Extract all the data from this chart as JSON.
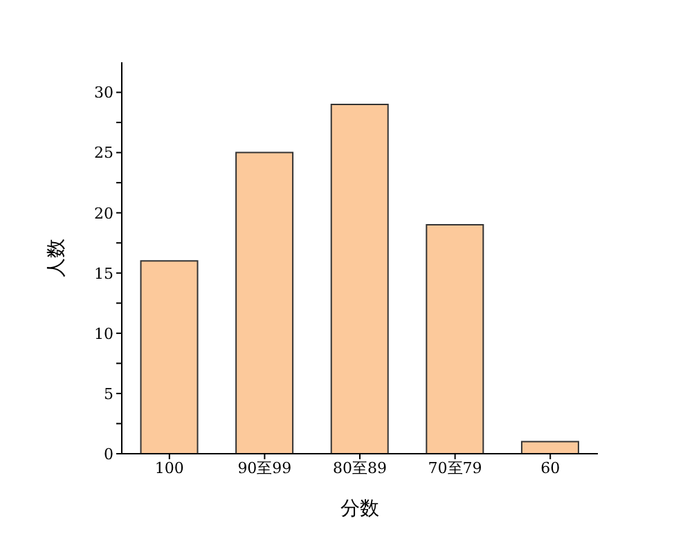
{
  "chart_data": {
    "type": "bar",
    "xlabel": "分数",
    "ylabel": "人数",
    "categories": [
      "100",
      "90至99",
      "80至89",
      "70至79",
      "60"
    ],
    "values": [
      16,
      25,
      29,
      19,
      1
    ],
    "color": "#fcc99b",
    "ylim": [
      0,
      32.5
    ],
    "yticks": [
      0,
      {
        "value": 2.5,
        "label": null
      },
      5,
      {
        "value": 7.5,
        "label": null
      },
      10,
      {
        "value": 12.5,
        "label": null
      },
      15,
      {
        "value": 17.5,
        "label": null
      },
      20,
      {
        "value": 22.5,
        "label": null
      },
      25,
      {
        "value": 27.5,
        "label": null
      },
      30
    ],
    "grid": false,
    "legend": false
  }
}
